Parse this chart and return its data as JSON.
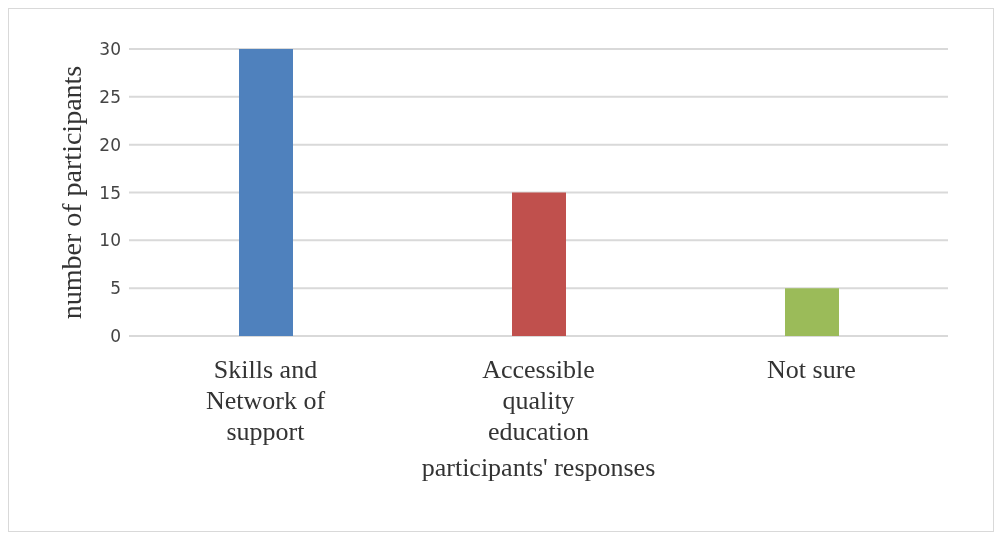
{
  "chart_data": {
    "type": "bar",
    "xlabel": "participants' responses",
    "ylabel": "number of participants",
    "categories": [
      "Skills and Network of support",
      "Accessible quality education",
      "Not sure"
    ],
    "values": [
      30,
      15,
      5
    ],
    "colors": [
      "#4f81bd",
      "#c0504d",
      "#9bbb59"
    ],
    "ylim": [
      0,
      30
    ],
    "yticks": [
      0,
      5,
      10,
      15,
      20,
      25,
      30
    ],
    "grid": "y"
  }
}
